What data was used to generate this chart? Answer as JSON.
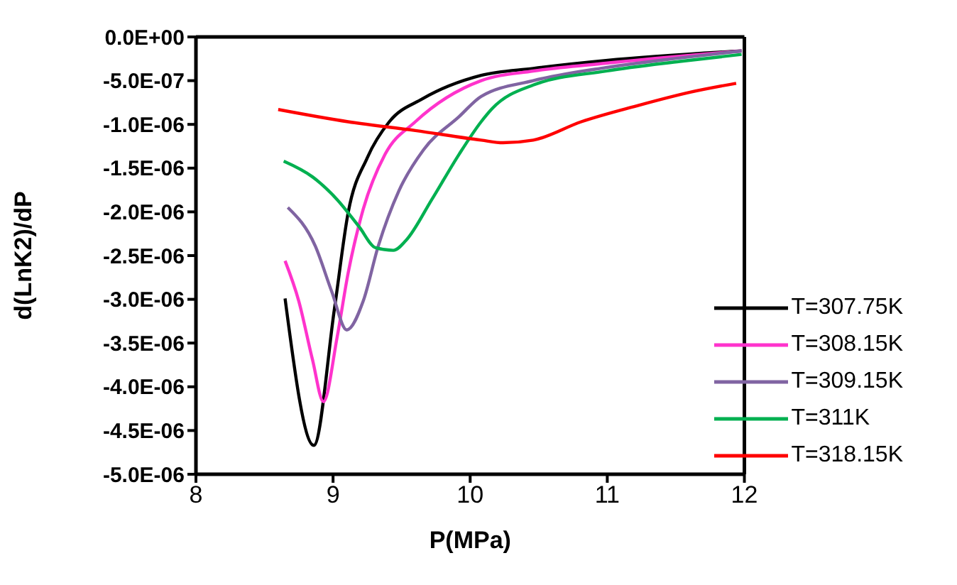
{
  "chart_data": {
    "type": "line",
    "xlabel": "P(MPa)",
    "ylabel": "d(LnK2)/dP",
    "xlim": [
      8,
      12
    ],
    "xticks": [
      8,
      9,
      10,
      11,
      12
    ],
    "ylim": [
      -5e-06,
      0
    ],
    "yticks": [
      {
        "value": -5e-06,
        "label": "-5.0E-06"
      },
      {
        "value": -4.5e-06,
        "label": "-4.5E-06"
      },
      {
        "value": -4e-06,
        "label": "-4.0E-06"
      },
      {
        "value": -3.5e-06,
        "label": "-3.5E-06"
      },
      {
        "value": -3e-06,
        "label": "-3.0E-06"
      },
      {
        "value": -2.5e-06,
        "label": "-2.5E-06"
      },
      {
        "value": -2e-06,
        "label": "-2.0E-06"
      },
      {
        "value": -1.5e-06,
        "label": "-1.5E-06"
      },
      {
        "value": -1e-06,
        "label": "-1.0E-06"
      },
      {
        "value": -5e-07,
        "label": "-5.0E-07"
      },
      {
        "value": 0,
        "label": "0.0E+00"
      }
    ],
    "grid": false,
    "legend": "bottom right",
    "marker": "none",
    "line_style": "solid",
    "series": [
      {
        "name": "T=307.75K",
        "color": "#000000",
        "x": [
          8.65,
          8.86,
          9.01,
          9.11,
          9.25,
          9.41,
          9.65,
          10.08,
          10.46,
          10.99,
          11.98
        ],
        "values": [
          -2.99e-06,
          -4.67e-06,
          -3.11e-06,
          -2.01e-06,
          -1.38e-06,
          -9.7e-07,
          -7.1e-07,
          -4.4e-07,
          -3.6e-07,
          -2.7e-07,
          -1.6e-07
        ]
      },
      {
        "name": "T=308.15K",
        "color": "#ff33cc",
        "x": [
          8.65,
          8.75,
          8.85,
          8.93,
          9.03,
          9.11,
          9.22,
          9.38,
          9.6,
          10.08,
          10.46,
          10.99,
          11.98
        ],
        "values": [
          -2.56e-06,
          -3.02e-06,
          -3.69e-06,
          -4.17e-06,
          -3.43e-06,
          -2.7e-06,
          -1.97e-06,
          -1.34e-06,
          -9.7e-07,
          -5e-07,
          -3.9e-07,
          -3e-07,
          -1.6e-07
        ]
      },
      {
        "name": "T=309.15K",
        "color": "#8064a2",
        "x": [
          8.67,
          8.87,
          8.99,
          9.1,
          9.22,
          9.33,
          9.48,
          9.66,
          9.92,
          10.08,
          10.46,
          10.99,
          11.53,
          11.98
        ],
        "values": [
          -1.95e-06,
          -2.39e-06,
          -2.91e-06,
          -3.35e-06,
          -3.02e-06,
          -2.39e-06,
          -1.76e-06,
          -1.29e-06,
          -9.1e-07,
          -6.8e-07,
          -5e-07,
          -3.5e-07,
          -2.4e-07,
          -1.6e-07
        ]
      },
      {
        "name": "T=311K",
        "color": "#00b050",
        "x": [
          8.64,
          8.85,
          9.03,
          9.19,
          9.31,
          9.44,
          9.53,
          9.72,
          9.92,
          10.08,
          10.16,
          10.46,
          10.99,
          11.53,
          11.98
        ],
        "values": [
          -1.42e-06,
          -1.6e-06,
          -1.86e-06,
          -2.17e-06,
          -2.41e-06,
          -2.44e-06,
          -2.33e-06,
          -1.86e-06,
          -1.34e-06,
          -9.7e-07,
          -8.2e-07,
          -5.5e-07,
          -3.9e-07,
          -2.8e-07,
          -2e-07
        ]
      },
      {
        "name": "T=318.15K",
        "color": "#ff0000",
        "x": [
          8.6,
          9.11,
          9.6,
          10.08,
          10.24,
          10.46,
          10.81,
          11.21,
          11.61,
          11.94
        ],
        "values": [
          -8.3e-07,
          -9.7e-07,
          -1.07e-06,
          -1.18e-06,
          -1.21e-06,
          -1.18e-06,
          -9.7e-07,
          -7.9e-07,
          -6.3e-07,
          -5.3e-07
        ]
      }
    ]
  }
}
